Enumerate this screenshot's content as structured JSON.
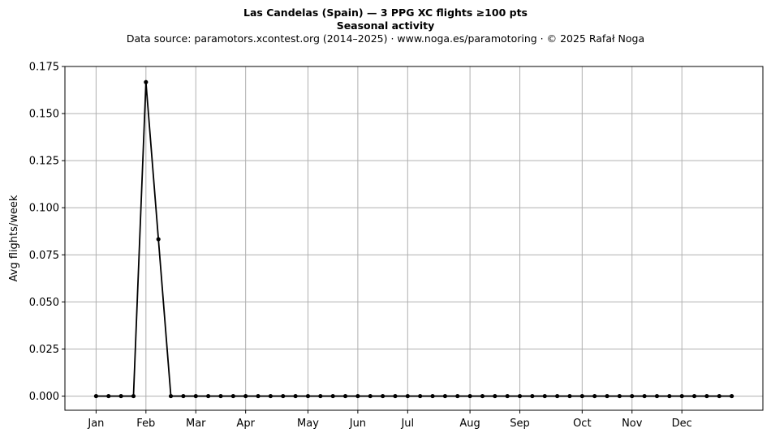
{
  "header": {
    "title": "Las Candelas (Spain)  —  3 PPG XC flights ≥100 pts",
    "subtitle": "Seasonal activity",
    "source": "Data source: paramotors.xcontest.org (2014–2025)  ·  www.noga.es/paramotoring  ·  © 2025 Rafał Noga"
  },
  "chart_data": {
    "type": "line",
    "title": "Las Candelas (Spain)  —  3 PPG XC flights ≥100 pts",
    "subtitle": "Seasonal activity",
    "xlabel": "",
    "ylabel": "Avg flights/week",
    "x_unit": "week of year",
    "xlim": [
      -1.5,
      54.5
    ],
    "ylim": [
      -0.0075,
      0.175
    ],
    "y_ticks": [
      0.0,
      0.025,
      0.05,
      0.075,
      0.1,
      0.125,
      0.15,
      0.175
    ],
    "y_tick_labels": [
      "0.000",
      "0.025",
      "0.050",
      "0.075",
      "0.100",
      "0.125",
      "0.150",
      "0.175"
    ],
    "x_ticks": [
      {
        "label": "Jan",
        "week": 1
      },
      {
        "label": "Feb",
        "week": 5
      },
      {
        "label": "Mar",
        "week": 9
      },
      {
        "label": "Apr",
        "week": 13
      },
      {
        "label": "May",
        "week": 18
      },
      {
        "label": "Jun",
        "week": 22
      },
      {
        "label": "Jul",
        "week": 26
      },
      {
        "label": "Aug",
        "week": 31
      },
      {
        "label": "Sep",
        "week": 35
      },
      {
        "label": "Oct",
        "week": 40
      },
      {
        "label": "Nov",
        "week": 44
      },
      {
        "label": "Dec",
        "week": 48
      }
    ],
    "grid": true,
    "series": [
      {
        "color": "#000000",
        "marker": "dot",
        "x": [
          1,
          2,
          3,
          4,
          5,
          6,
          7,
          8,
          9,
          10,
          11,
          12,
          13,
          14,
          15,
          16,
          17,
          18,
          19,
          20,
          21,
          22,
          23,
          24,
          25,
          26,
          27,
          28,
          29,
          30,
          31,
          32,
          33,
          34,
          35,
          36,
          37,
          38,
          39,
          40,
          41,
          42,
          43,
          44,
          45,
          46,
          47,
          48,
          49,
          50,
          51,
          52
        ],
        "values": [
          0,
          0,
          0,
          0,
          0.1667,
          0.0833,
          0,
          0,
          0,
          0,
          0,
          0,
          0,
          0,
          0,
          0,
          0,
          0,
          0,
          0,
          0,
          0,
          0,
          0,
          0,
          0,
          0,
          0,
          0,
          0,
          0,
          0,
          0,
          0,
          0,
          0,
          0,
          0,
          0,
          0,
          0,
          0,
          0,
          0,
          0,
          0,
          0,
          0,
          0,
          0,
          0,
          0
        ]
      }
    ]
  }
}
